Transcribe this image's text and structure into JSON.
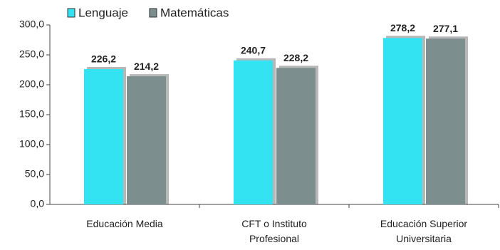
{
  "chart_data": {
    "type": "bar",
    "categories": [
      "Educación Media",
      "CFT o Instituto Profesional",
      "Educación Superior Universitaria"
    ],
    "series": [
      {
        "name": "Lenguaje",
        "color": "#33e3f2",
        "values": [
          226.2,
          240.7,
          278.2
        ],
        "value_labels": [
          "226,2",
          "240,7",
          "278,2"
        ]
      },
      {
        "name": "Matemáticas",
        "color": "#7d8e8e",
        "values": [
          214.2,
          228.2,
          277.1
        ],
        "value_labels": [
          "214,2",
          "228,2",
          "277,1"
        ]
      }
    ],
    "ylim": [
      0,
      300
    ],
    "yticks": [
      {
        "value": 0,
        "label": "0,0"
      },
      {
        "value": 50,
        "label": "50,0"
      },
      {
        "value": 100,
        "label": "100,0"
      },
      {
        "value": 150,
        "label": "150,0"
      },
      {
        "value": 200,
        "label": "200,0"
      },
      {
        "value": 250,
        "label": "250,0"
      },
      {
        "value": 300,
        "label": "300,0"
      }
    ],
    "legend": "top"
  }
}
